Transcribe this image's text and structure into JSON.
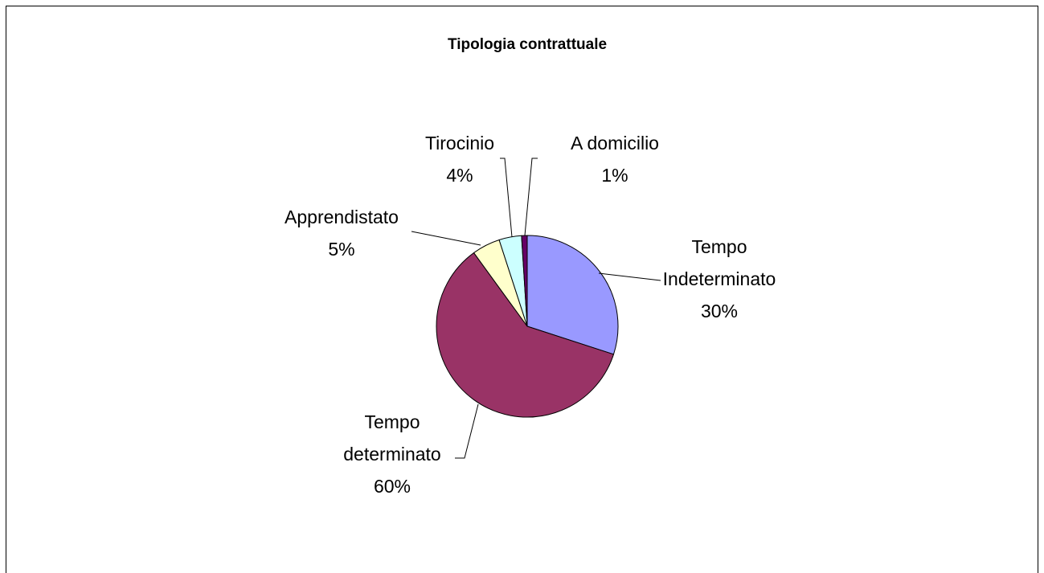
{
  "chart_data": {
    "type": "pie",
    "title": "Tipologia contrattuale",
    "categories": [
      "Tempo Indeterminato",
      "Tempo determinato",
      "Apprendistato",
      "Tirocinio",
      "A domicilio"
    ],
    "values": [
      30,
      60,
      5,
      4,
      1
    ],
    "value_labels": [
      "30%",
      "60%",
      "5%",
      "4%",
      "1%"
    ],
    "colors": [
      "#9999ff",
      "#993366",
      "#ffffcc",
      "#ccffff",
      "#660066"
    ]
  }
}
